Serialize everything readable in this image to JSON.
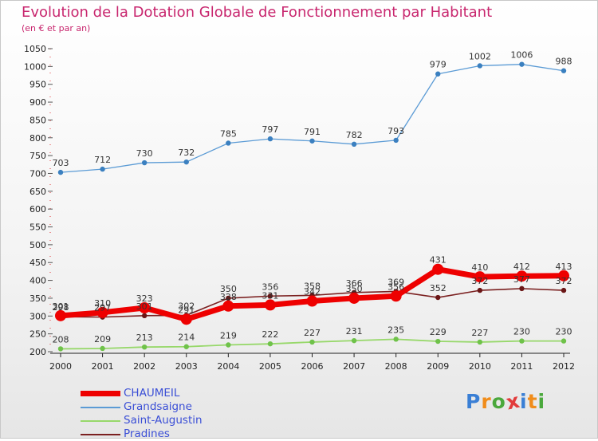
{
  "header": {
    "title": "Evolution de la Dotation Globale de Fonctionnement par Habitant",
    "subtitle": "(en € et par an)"
  },
  "logo": {
    "text": "Proxiti",
    "letters": [
      "P",
      "r",
      "o",
      "x",
      "i",
      "t",
      "i"
    ],
    "colors": [
      "#3a7fd5",
      "#f08c1a",
      "#4aa83c",
      "#e23c3c",
      "#3a7fd5",
      "#f08c1a",
      "#4aa83c"
    ]
  },
  "chart_data": {
    "type": "line",
    "title": "Evolution de la Dotation Globale de Fonctionnement par Habitant",
    "subtitle": "(en € et par an)",
    "x": [
      2000,
      2001,
      2002,
      2003,
      2004,
      2005,
      2006,
      2007,
      2008,
      2009,
      2010,
      2011,
      2012
    ],
    "ylim": [
      200,
      1050
    ],
    "yticks": [
      200,
      250,
      300,
      350,
      400,
      450,
      500,
      550,
      600,
      650,
      700,
      750,
      800,
      850,
      900,
      950,
      1000,
      1050
    ],
    "grid": false,
    "legend_position": "bottom-left",
    "series": [
      {
        "name": "Grandsaigne",
        "color": "#5b9bd5",
        "point_color": "#3b80c0",
        "width": 1.3,
        "marker": 3.2,
        "values": [
          703,
          712,
          730,
          732,
          785,
          797,
          791,
          782,
          793,
          979,
          1002,
          1006,
          988
        ]
      },
      {
        "name": "Saint-Augustin",
        "color": "#97d86a",
        "point_color": "#6fc24a",
        "width": 1.8,
        "marker": 3.2,
        "values": [
          208,
          209,
          213,
          214,
          219,
          222,
          227,
          231,
          235,
          229,
          227,
          230,
          230
        ]
      },
      {
        "name": "Pradines",
        "color": "#7b2020",
        "point_color": "#6a1616",
        "width": 1.6,
        "marker": 3.2,
        "values": [
          298,
          297,
          301,
          302,
          350,
          356,
          358,
          366,
          369,
          352,
          372,
          377,
          372
        ]
      },
      {
        "name": "CHAUMEIL",
        "color": "#ee0000",
        "point_color": "#ee0000",
        "width": 7,
        "marker": 7,
        "values": [
          301,
          310,
          323,
          291,
          328,
          331,
          342,
          350,
          356,
          431,
          410,
          412,
          413
        ]
      }
    ]
  },
  "legend": [
    {
      "name": "CHAUMEIL",
      "color": "#ee0000",
      "thickness": 7
    },
    {
      "name": "Grandsaigne",
      "color": "#5b9bd5",
      "thickness": 2
    },
    {
      "name": "Saint-Augustin",
      "color": "#97d86a",
      "thickness": 2
    },
    {
      "name": "Pradines",
      "color": "#7b2020",
      "thickness": 2
    }
  ]
}
